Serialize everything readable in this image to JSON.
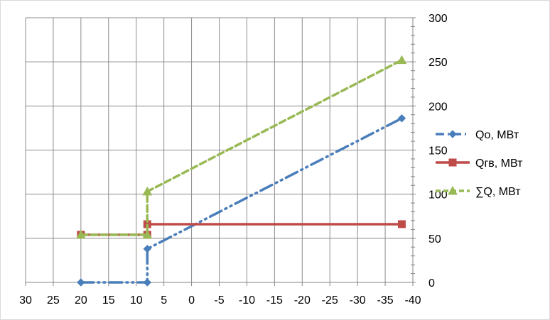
{
  "chart_data": {
    "type": "scatter",
    "x_reversed": true,
    "xlim": [
      30,
      -40
    ],
    "ylim": [
      0,
      300
    ],
    "x_ticks": [
      30,
      25,
      20,
      15,
      10,
      5,
      0,
      -5,
      -10,
      -15,
      -20,
      -25,
      -30,
      -35,
      -40
    ],
    "y_ticks": [
      0,
      50,
      100,
      150,
      200,
      250,
      300
    ],
    "grid": true,
    "legend_position": "right",
    "series": [
      {
        "name": "Qо, МВт",
        "color": "#4a7ebb",
        "marker": "diamond",
        "line_style": "dash-dot-dot",
        "points": [
          [
            20,
            0
          ],
          [
            8,
            0
          ],
          [
            8,
            38
          ],
          [
            -38,
            186
          ]
        ]
      },
      {
        "name": "Qгв, МВт",
        "color": "#be4b48",
        "marker": "square",
        "line_style": "solid",
        "points": [
          [
            20,
            54
          ],
          [
            8,
            54
          ],
          [
            8,
            66
          ],
          [
            -38,
            66
          ]
        ]
      },
      {
        "name": "∑Q, МВт",
        "color": "#98b954",
        "marker": "triangle",
        "line_style": "dashed",
        "points": [
          [
            20,
            54
          ],
          [
            8,
            54
          ],
          [
            8,
            103
          ],
          [
            -38,
            252
          ]
        ]
      }
    ]
  }
}
